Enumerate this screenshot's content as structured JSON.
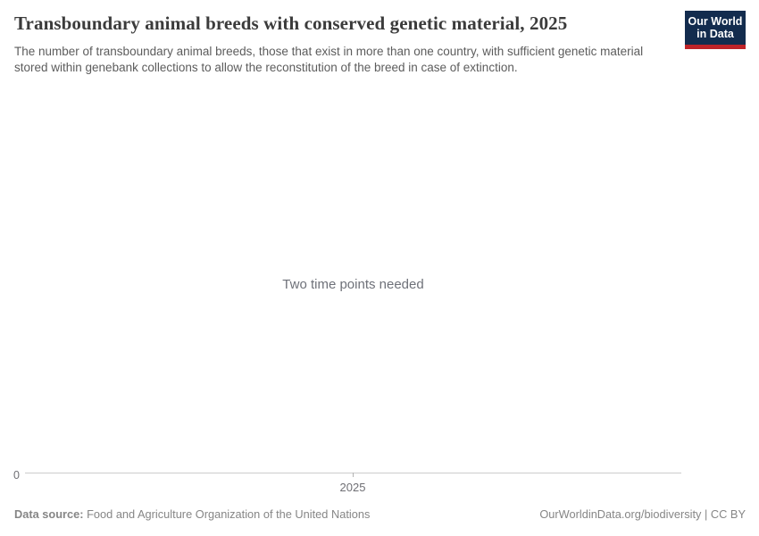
{
  "header": {
    "title": "Transboundary animal breeds with conserved genetic material, 2025",
    "subtitle": "The number of transboundary animal breeds, those that exist in more than one country, with sufficient genetic material stored within genebank collections to allow the reconstitution of the breed in case of extinction.",
    "logo": {
      "line1": "Our World",
      "line2": "in Data"
    }
  },
  "chart": {
    "empty_message": "Two time points needed",
    "y_axis": {
      "tick_labels": [
        "0"
      ]
    },
    "x_axis": {
      "tick_labels": [
        "2025"
      ]
    }
  },
  "chart_data": {
    "type": "line",
    "title": "Transboundary animal breeds with conserved genetic material, 2025",
    "subtitle": "The number of transboundary animal breeds, those that exist in more than one country, with sufficient genetic material stored within genebank collections to allow the reconstitution of the breed in case of extinction.",
    "series": [],
    "x": [],
    "x_tick_labels": [
      "2025"
    ],
    "y_tick_labels": [
      "0"
    ],
    "empty_state_message": "Two time points needed",
    "grid": false,
    "legend": "none",
    "xlabel": "",
    "ylabel": ""
  },
  "footer": {
    "datasource_label": "Data source:",
    "datasource_value": "Food and Agriculture Organization of the United Nations",
    "attribution": "OurWorldinData.org/biodiversity | CC BY"
  },
  "colors": {
    "logo_background": "#132c4e",
    "logo_stripe": "#be2328",
    "axis_line": "#cccccc",
    "tick_mark": "#b3b3b3",
    "title_text": "#3b3b3b",
    "subtitle_text": "#5c5c5c",
    "message_text": "#6e7179",
    "axis_label_text": "#6f6f74",
    "footer_text": "#868686",
    "background": "#ffffff"
  }
}
